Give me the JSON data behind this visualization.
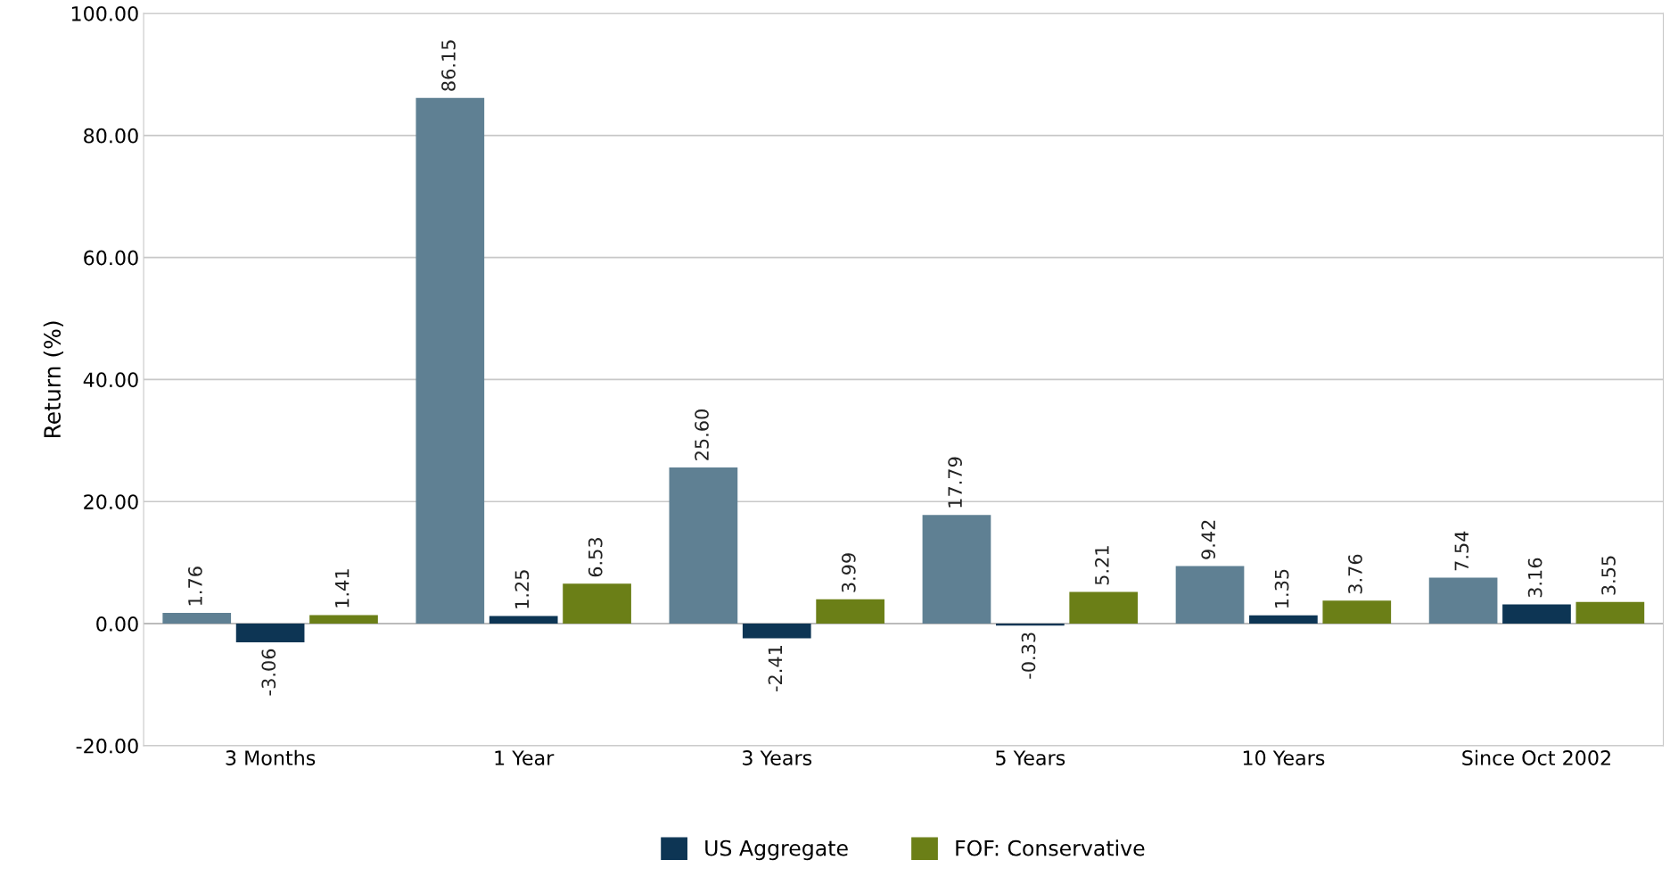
{
  "chart_data": {
    "type": "bar",
    "ylabel": "Return (%)",
    "categories": [
      "3 Months",
      "1 Year",
      "3 Years",
      "5 Years",
      "10 Years",
      "Since Oct 2002"
    ],
    "series": [
      {
        "color": "#5f8093",
        "values": [
          1.76,
          86.15,
          25.6,
          17.79,
          9.42,
          7.54
        ],
        "value_labels": [
          "1.76",
          "86.15",
          "25.60",
          "17.79",
          "9.42",
          "7.54"
        ]
      },
      {
        "name": "US Aggregate",
        "color": "#0d3554",
        "values": [
          -3.06,
          1.25,
          -2.41,
          -0.33,
          1.35,
          3.16
        ],
        "value_labels": [
          "-3.06",
          "1.25",
          "-2.41",
          "-0.33",
          "1.35",
          "3.16"
        ]
      },
      {
        "name": "FOF: Conservative",
        "color": "#6b7f17",
        "values": [
          1.41,
          6.53,
          3.99,
          5.21,
          3.76,
          3.55
        ],
        "value_labels": [
          "1.41",
          "6.53",
          "3.99",
          "5.21",
          "3.76",
          "3.55"
        ]
      }
    ],
    "ylim": [
      -20,
      100
    ],
    "yticks": [
      {
        "value": -20,
        "label": "-20.00"
      },
      {
        "value": 0,
        "label": "0.00"
      },
      {
        "value": 20,
        "label": "20.00"
      },
      {
        "value": 40,
        "label": "40.00"
      },
      {
        "value": 60,
        "label": "60.00"
      },
      {
        "value": 80,
        "label": "80.00"
      },
      {
        "value": 100,
        "label": "100.00"
      }
    ],
    "grid": "y",
    "legend": "bottom"
  }
}
